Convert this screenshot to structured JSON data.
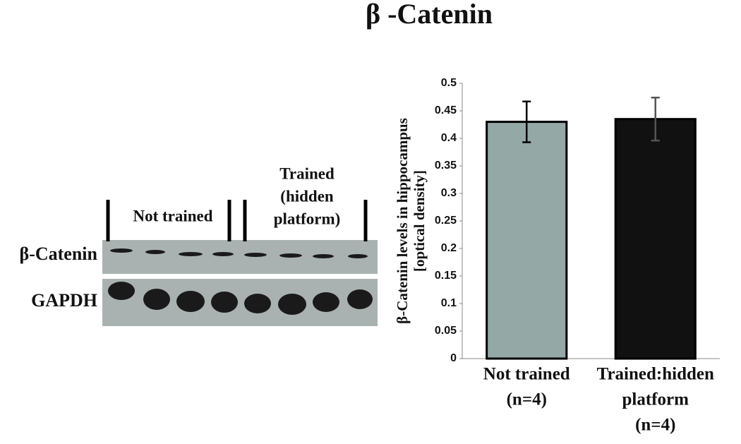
{
  "chart_data": {
    "type": "bar",
    "title": "β -Catenin",
    "ylabel": [
      "β-Catenin levels in hippocampus",
      "[optical density]"
    ],
    "categories": [
      [
        "Not trained",
        "(n=4)"
      ],
      [
        "Trained:hidden",
        "platform",
        "(n=4)"
      ]
    ],
    "values": [
      0.43,
      0.435
    ],
    "errors": [
      0.037,
      0.039
    ],
    "colors": [
      "#94a8a5",
      "#111111"
    ],
    "ylim": [
      0,
      0.5
    ],
    "yticks": [
      0,
      0.05,
      0.1,
      0.15,
      0.2,
      0.25,
      0.3,
      0.35,
      0.4,
      0.45,
      0.5
    ]
  },
  "blot": {
    "groups": [
      [
        "Not trained"
      ],
      [
        "Trained",
        "(hidden",
        "platform)"
      ]
    ],
    "rows": [
      "β-Catenin",
      "GAPDH"
    ]
  }
}
